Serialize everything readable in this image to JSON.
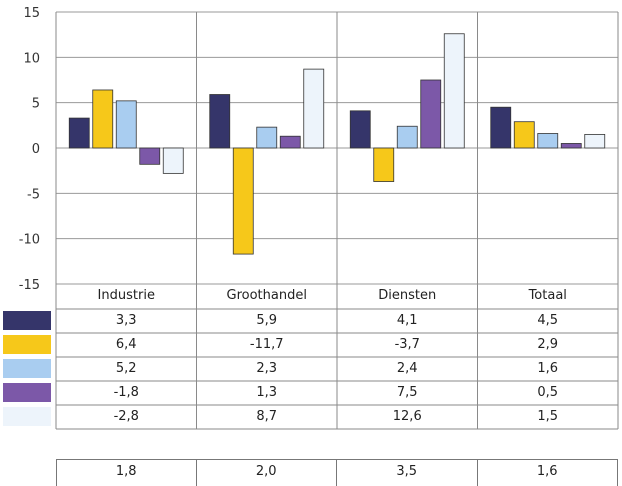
{
  "chart_data": {
    "type": "bar",
    "categories": [
      "Industrie",
      "Groothandel",
      "Diensten",
      "Totaal"
    ],
    "series": [
      {
        "color": "#35356a",
        "values": [
          3.3,
          5.9,
          4.1,
          4.5
        ]
      },
      {
        "color": "#f6c81a",
        "values": [
          6.4,
          -11.7,
          -3.7,
          2.9
        ]
      },
      {
        "color": "#a9cdf0",
        "values": [
          5.2,
          2.3,
          2.4,
          1.6
        ]
      },
      {
        "color": "#7c58a8",
        "values": [
          -1.8,
          1.3,
          7.5,
          0.5
        ]
      },
      {
        "color": "#edf4fb",
        "values": [
          -2.8,
          8.7,
          12.6,
          1.5
        ]
      }
    ],
    "ylim": [
      -15,
      15
    ],
    "yticks": [
      "15",
      "10",
      "5",
      "0",
      "-5",
      "-10",
      "-15"
    ],
    "ytick_values": [
      15,
      10,
      5,
      0,
      -5,
      -10,
      -15
    ],
    "grid": true,
    "table_rows": [
      [
        "3,3",
        "5,9",
        "4,1",
        "4,5"
      ],
      [
        "6,4",
        "-11,7",
        "-3,7",
        "2,9"
      ],
      [
        "5,2",
        "2,3",
        "2,4",
        "1,6"
      ],
      [
        "-1,8",
        "1,3",
        "7,5",
        "0,5"
      ],
      [
        "-2,8",
        "8,7",
        "12,6",
        "1,5"
      ]
    ],
    "bottom_row": [
      "1,8",
      "2,0",
      "3,5",
      "1,6"
    ]
  }
}
